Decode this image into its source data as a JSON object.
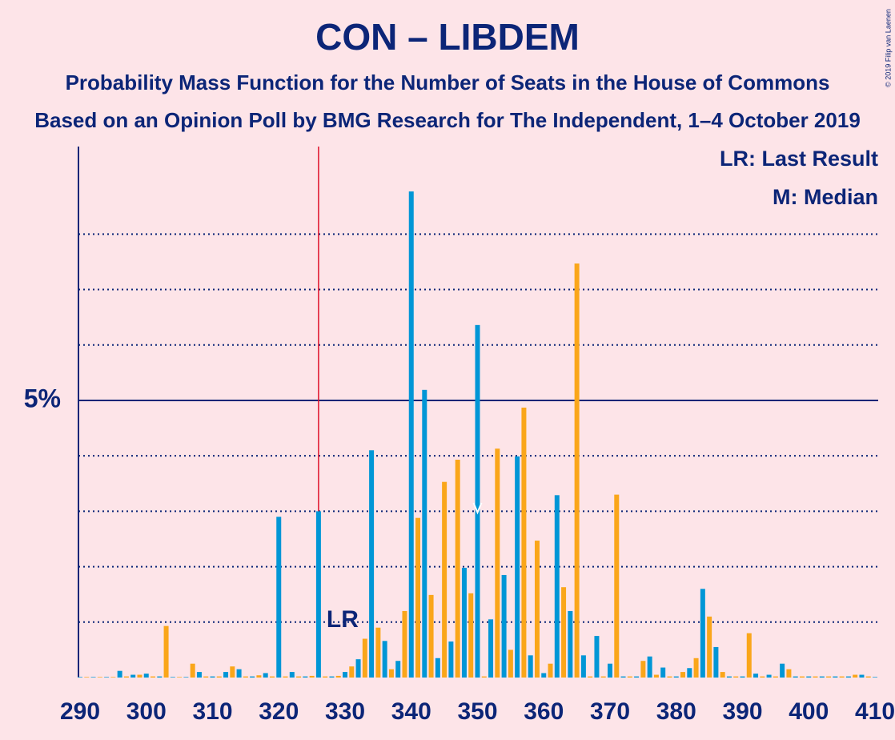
{
  "chart_data": {
    "type": "bar",
    "title": "CON – LIBDEM",
    "subtitle": "Probability Mass Function for the Number of Seats in the House of Commons",
    "subtitle2": "Based on an Opinion Poll by BMG Research for The Independent, 1–4 October 2019",
    "legend_lr": "LR: Last Result",
    "legend_median": "M: Median",
    "lr_label": "LR",
    "copyright": "© 2019 Filip van Laenen",
    "x": [
      290,
      291,
      292,
      293,
      294,
      295,
      296,
      297,
      298,
      299,
      300,
      301,
      302,
      303,
      304,
      305,
      306,
      307,
      308,
      309,
      310,
      311,
      312,
      313,
      314,
      315,
      316,
      317,
      318,
      319,
      320,
      321,
      322,
      323,
      324,
      325,
      326,
      327,
      328,
      329,
      330,
      331,
      332,
      333,
      334,
      335,
      336,
      337,
      338,
      339,
      340,
      341,
      342,
      343,
      344,
      345,
      346,
      347,
      348,
      349,
      350,
      351,
      352,
      353,
      354,
      355,
      356,
      357,
      358,
      359,
      360,
      361,
      362,
      363,
      364,
      365,
      366,
      367,
      368,
      369,
      370,
      371,
      372,
      373,
      374,
      375,
      376,
      377,
      378,
      379,
      380,
      381,
      382,
      383,
      384,
      385,
      386,
      387,
      388,
      389,
      390,
      391,
      392,
      393,
      394,
      395,
      396,
      397,
      398,
      399,
      400,
      401,
      402,
      403,
      404,
      405,
      406,
      407,
      408,
      409,
      410
    ],
    "values": [
      0.01,
      0.01,
      0.01,
      0.01,
      0.01,
      0.01,
      0.12,
      0.02,
      0.05,
      0.05,
      0.07,
      0.02,
      0.02,
      0.93,
      0.01,
      0.01,
      0.01,
      0.25,
      0.1,
      0.02,
      0.02,
      0.02,
      0.1,
      0.2,
      0.15,
      0.02,
      0.02,
      0.04,
      0.08,
      0.02,
      2.9,
      0.02,
      0.1,
      0.02,
      0.02,
      0.03,
      3.0,
      0.02,
      0.02,
      0.03,
      0.1,
      0.2,
      0.33,
      0.7,
      4.1,
      0.9,
      0.66,
      0.15,
      0.3,
      1.2,
      8.77,
      2.88,
      5.19,
      1.49,
      0.35,
      3.53,
      0.65,
      3.93,
      1.98,
      1.52,
      6.36,
      0.02,
      1.05,
      4.13,
      1.85,
      0.5,
      3.99,
      4.87,
      0.4,
      2.47,
      0.08,
      0.25,
      3.29,
      1.63,
      1.2,
      7.47,
      0.4,
      0.02,
      0.75,
      0.02,
      0.25,
      3.3,
      0.02,
      0.02,
      0.02,
      0.3,
      0.38,
      0.05,
      0.18,
      0.02,
      0.02,
      0.1,
      0.17,
      0.35,
      1.6,
      1.1,
      0.55,
      0.1,
      0.02,
      0.02,
      0.02,
      0.8,
      0.07,
      0.02,
      0.05,
      0.02,
      0.25,
      0.15,
      0.02,
      0.02,
      0.02,
      0.02,
      0.02,
      0.02,
      0.02,
      0.02,
      0.02,
      0.05,
      0.05,
      0.02,
      0.01
    ],
    "colors": [
      "#0096d6",
      "#faa61a"
    ],
    "last_result": 326,
    "median": 350,
    "xlim": [
      290,
      410
    ],
    "xticks": [
      290,
      300,
      310,
      320,
      330,
      340,
      350,
      360,
      370,
      380,
      390,
      400,
      410
    ],
    "ylim": [
      0,
      9.58
    ],
    "yticks": [
      {
        "value": 5,
        "label": "5%"
      }
    ],
    "minor_yticks": [
      1,
      2,
      3,
      4,
      6,
      7,
      8
    ],
    "grid": true
  }
}
